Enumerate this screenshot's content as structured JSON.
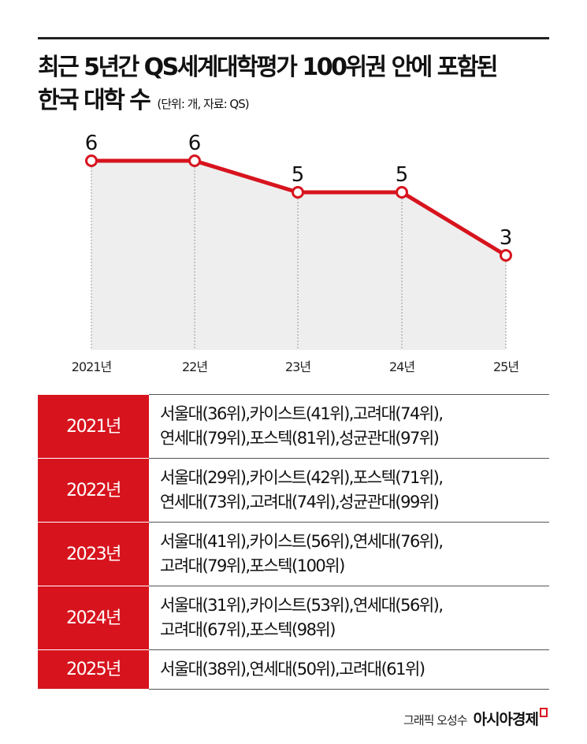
{
  "title_line1": "최근 5년간 QS세계대학평가 100위권 안에 포함된",
  "title_line2": "한국 대학 수",
  "unit_source": "(단위: 개, 자료: QS)",
  "chart_data": {
    "type": "line",
    "categories": [
      "2021년",
      "22년",
      "23년",
      "24년",
      "25년"
    ],
    "values": [
      6,
      6,
      5,
      5,
      3
    ],
    "data_labels": [
      "6",
      "6",
      "5",
      "5",
      "3"
    ],
    "ylim": [
      0,
      6
    ],
    "line_color": "#d7141e",
    "fill_color": "#eeeeee",
    "grid": false
  },
  "table": [
    {
      "year": "2021년",
      "lines": [
        "서울대(36위),카이스트(41위),고려대(74위),",
        "연세대(79위),포스텍(81위),성균관대(97위)"
      ]
    },
    {
      "year": "2022년",
      "lines": [
        "서울대(29위),카이스트(42위),포스텍(71위),",
        "연세대(73위),고려대(74위),성균관대(99위)"
      ]
    },
    {
      "year": "2023년",
      "lines": [
        "서울대(41위),카이스트(56위),연세대(76위),",
        "고려대(79위),포스텍(100위)"
      ]
    },
    {
      "year": "2024년",
      "lines": [
        "서울대(31위),카이스트(53위),연세대(56위),",
        "고려대(67위),포스텍(98위)"
      ]
    },
    {
      "year": "2025년",
      "lines": [
        "서울대(38위),연세대(50위),고려대(61위)"
      ]
    }
  ],
  "credit": "그래픽 오성수",
  "logo": "아시아경제",
  "accent": "#d7141e"
}
